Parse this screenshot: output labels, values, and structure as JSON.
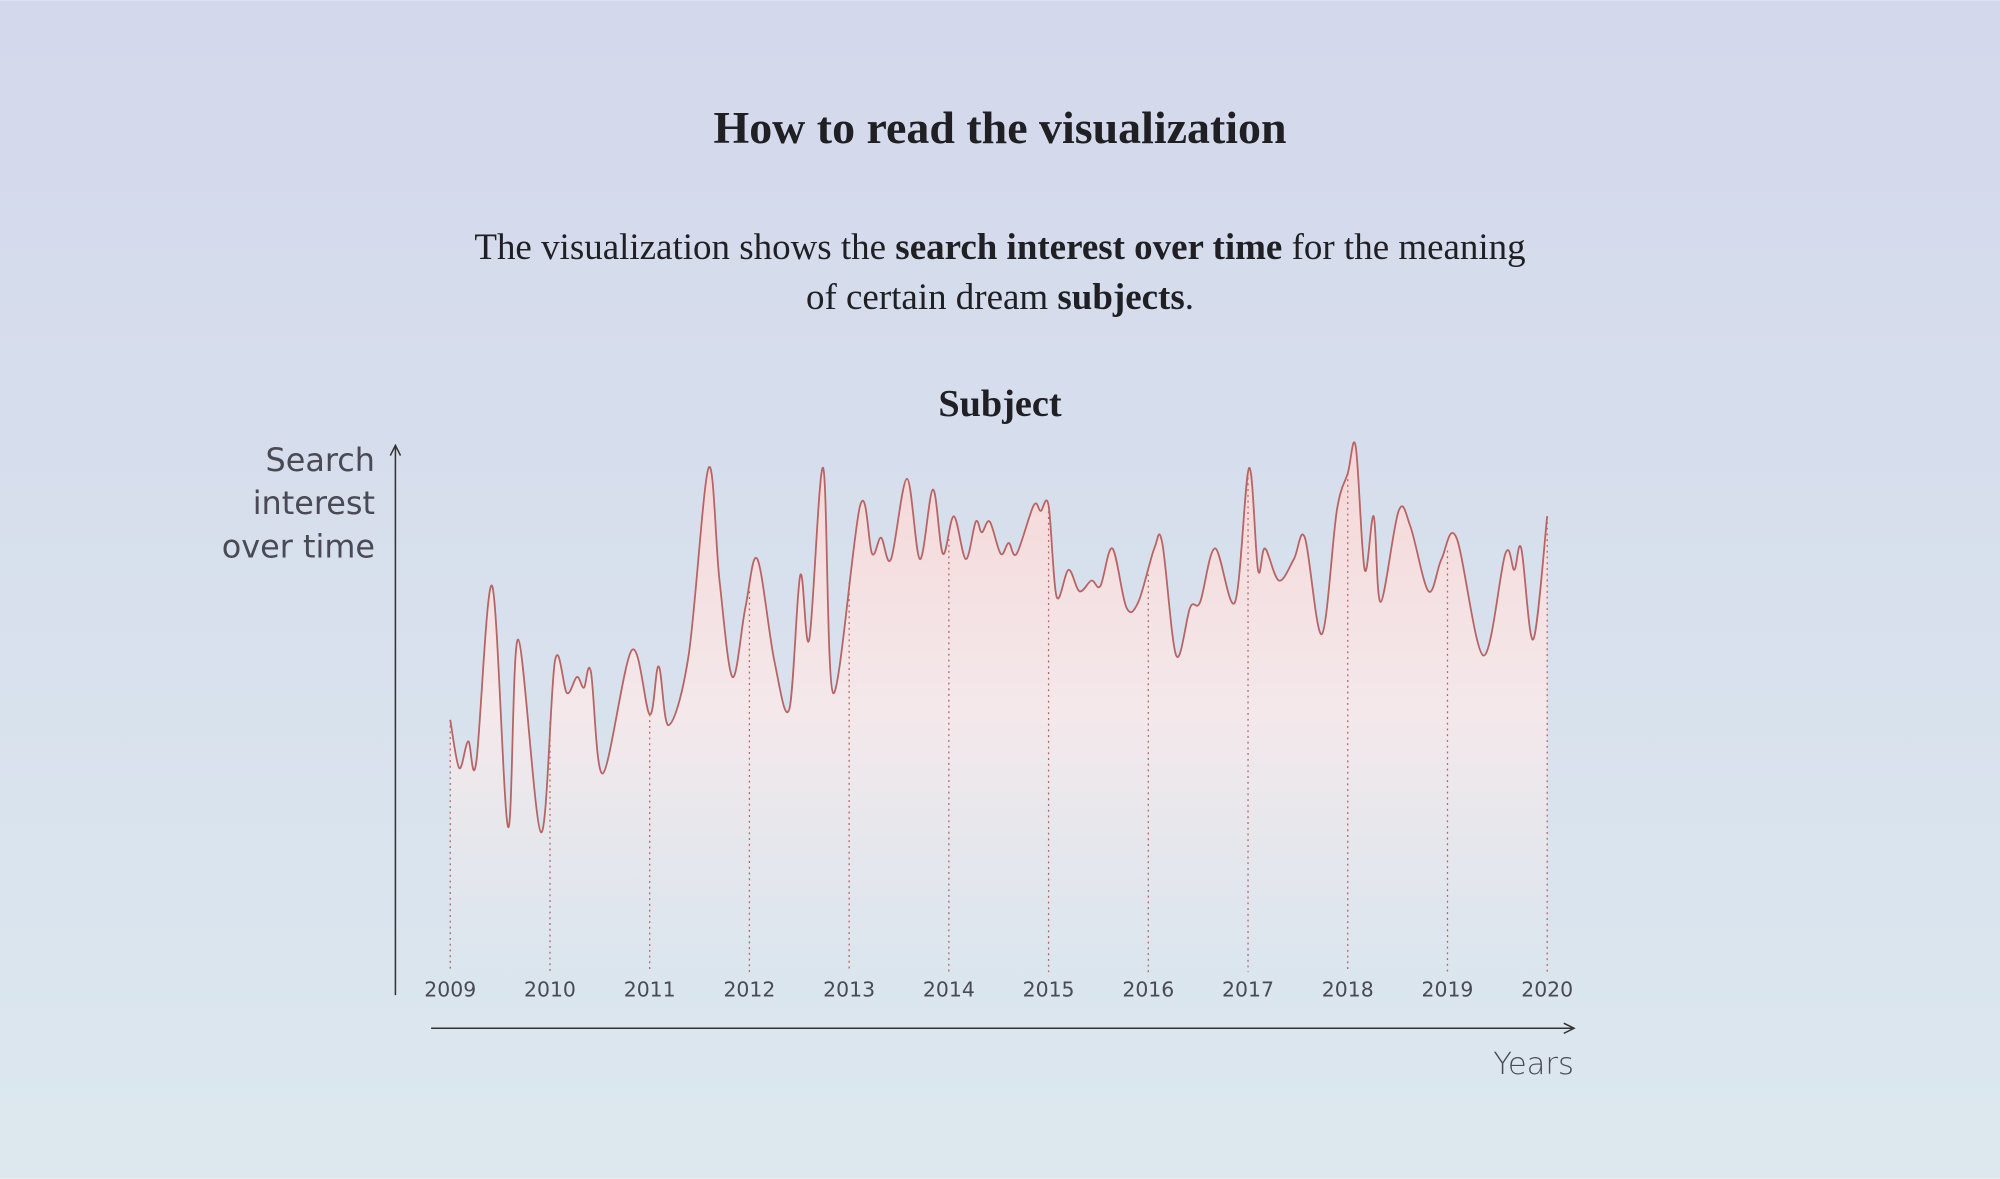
{
  "page_title": "How to read the visualization",
  "description": [
    [
      "The visualization shows the ",
      "search interest over time",
      " for the meaning"
    ],
    [
      "of certain dream ",
      "subjects",
      "."
    ]
  ],
  "chart_data": {
    "type": "line",
    "title": "Subject",
    "y_label": [
      "Search",
      "interest",
      "over time"
    ],
    "x_label": "Years",
    "color": "#b76464",
    "xlim": [
      2009,
      2020
    ],
    "xticks": [
      2009,
      2010,
      2011,
      2012,
      2013,
      2014,
      2015,
      2016,
      2017,
      2018,
      2019,
      2020
    ],
    "ylim": [
      0,
      100
    ],
    "x": [
      2009.0,
      2009.09,
      2009.18,
      2009.26,
      2009.42,
      2009.58,
      2009.68,
      2009.91,
      2010.05,
      2010.17,
      2010.27,
      2010.34,
      2010.41,
      2010.53,
      2010.82,
      2011.0,
      2011.09,
      2011.19,
      2011.39,
      2011.59,
      2011.7,
      2011.83,
      2011.96,
      2012.08,
      2012.25,
      2012.4,
      2012.51,
      2012.6,
      2012.74,
      2012.84,
      2013.11,
      2013.23,
      2013.32,
      2013.42,
      2013.58,
      2013.71,
      2013.84,
      2013.94,
      2014.05,
      2014.17,
      2014.27,
      2014.33,
      2014.41,
      2014.52,
      2014.6,
      2014.68,
      2014.85,
      2014.92,
      2015.0,
      2015.08,
      2015.2,
      2015.31,
      2015.43,
      2015.52,
      2015.64,
      2015.78,
      2015.9,
      2016.06,
      2016.14,
      2016.28,
      2016.42,
      2016.52,
      2016.67,
      2016.87,
      2017.01,
      2017.1,
      2017.17,
      2017.31,
      2017.46,
      2017.57,
      2017.74,
      2017.89,
      2018.0,
      2018.08,
      2018.17,
      2018.26,
      2018.33,
      2018.51,
      2018.63,
      2018.81,
      2018.94,
      2019.09,
      2019.36,
      2019.58,
      2019.67,
      2019.74,
      2019.86,
      2020.0
    ],
    "values": [
      49,
      40,
      45,
      41,
      74,
      29,
      64,
      28,
      60,
      54,
      57,
      55,
      58,
      39,
      62,
      50,
      59,
      48,
      61,
      96,
      75,
      57,
      70,
      79,
      60,
      51,
      76,
      64,
      96,
      54,
      89,
      80,
      83,
      79,
      94,
      79,
      92,
      80,
      87,
      79,
      86,
      84,
      86,
      80,
      82,
      80,
      89,
      88,
      89,
      72,
      77,
      73,
      75,
      74,
      81,
      70,
      71,
      81,
      82,
      61,
      70,
      71,
      81,
      71,
      96,
      77,
      81,
      75,
      79,
      83,
      65,
      88,
      95,
      100,
      77,
      87,
      71,
      88,
      85,
      73,
      79,
      83,
      61,
      80,
      77,
      81,
      64,
      87
    ]
  }
}
